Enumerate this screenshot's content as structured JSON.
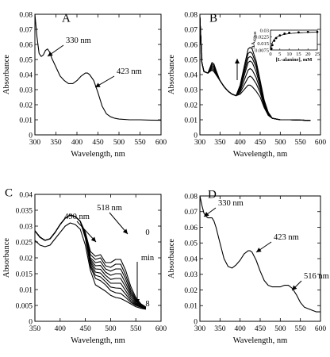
{
  "chart_data": [
    {
      "panel": "A",
      "type": "line",
      "xlabel": "Wavelength, nm",
      "ylabel": "Absorbance",
      "xlim": [
        300,
        600
      ],
      "ylim": [
        0,
        0.08
      ],
      "xticks": [
        "300",
        "350",
        "400",
        "450",
        "500",
        "550",
        "600"
      ],
      "yticks": [
        "0",
        "0.01",
        "0.02",
        "0.03",
        "0.04",
        "0.05",
        "0.06",
        "0.07",
        "0.08"
      ],
      "grid": false,
      "series": [
        {
          "x": [
            300,
            305,
            310,
            315,
            320,
            325,
            330,
            335,
            340,
            350,
            360,
            370,
            380,
            390,
            400,
            410,
            420,
            425,
            430,
            440,
            450,
            460,
            470,
            480,
            490,
            500,
            525,
            550,
            575,
            600
          ],
          "y": [
            0.08,
            0.065,
            0.054,
            0.052,
            0.053,
            0.056,
            0.057,
            0.055,
            0.051,
            0.045,
            0.039,
            0.036,
            0.034,
            0.034,
            0.036,
            0.039,
            0.041,
            0.041,
            0.04,
            0.036,
            0.028,
            0.019,
            0.014,
            0.012,
            0.011,
            0.0105,
            0.01,
            0.01,
            0.0098,
            0.0097
          ]
        }
      ],
      "annotations": [
        {
          "text": "330 nm",
          "x": 330,
          "y": 0.057
        },
        {
          "text": "423 nm",
          "x": 423,
          "y": 0.041
        }
      ]
    },
    {
      "panel": "B",
      "type": "line",
      "xlabel": "Wavelength, nm",
      "ylabel": "Absorbance",
      "xlim": [
        300,
        600
      ],
      "ylim": [
        0,
        0.08
      ],
      "xticks": [
        "300",
        "350",
        "400",
        "450",
        "500",
        "550",
        "600"
      ],
      "yticks": [
        "0",
        "0.01",
        "0.02",
        "0.03",
        "0.04",
        "0.05",
        "0.06",
        "0.07",
        "0.08"
      ],
      "grid": false,
      "x": [
        300,
        305,
        310,
        320,
        330,
        335,
        340,
        350,
        360,
        370,
        380,
        390,
        400,
        410,
        420,
        425,
        430,
        440,
        450,
        460,
        470,
        480,
        490,
        500,
        525,
        550,
        575
      ],
      "series": [
        {
          "values": [
            0.078,
            0.048,
            0.042,
            0.041,
            0.043,
            0.042,
            0.04,
            0.036,
            0.032,
            0.029,
            0.027,
            0.026,
            0.027,
            0.03,
            0.033,
            0.033,
            0.032,
            0.029,
            0.025,
            0.018,
            0.013,
            0.011,
            0.0105,
            0.01,
            0.01,
            0.0098,
            0.0096
          ]
        },
        {
          "values": [
            0.078,
            0.048,
            0.042,
            0.041,
            0.043,
            0.042,
            0.04,
            0.036,
            0.032,
            0.029,
            0.027,
            0.026,
            0.028,
            0.033,
            0.038,
            0.039,
            0.038,
            0.034,
            0.028,
            0.019,
            0.013,
            0.011,
            0.0105,
            0.01,
            0.01,
            0.0098,
            0.0096
          ]
        },
        {
          "values": [
            0.078,
            0.048,
            0.042,
            0.041,
            0.044,
            0.043,
            0.041,
            0.036,
            0.032,
            0.029,
            0.027,
            0.026,
            0.029,
            0.036,
            0.043,
            0.044,
            0.043,
            0.038,
            0.03,
            0.02,
            0.014,
            0.011,
            0.0105,
            0.01,
            0.01,
            0.0098,
            0.0096
          ]
        },
        {
          "values": [
            0.078,
            0.048,
            0.042,
            0.041,
            0.045,
            0.044,
            0.041,
            0.036,
            0.032,
            0.029,
            0.027,
            0.026,
            0.03,
            0.039,
            0.048,
            0.049,
            0.048,
            0.042,
            0.032,
            0.021,
            0.014,
            0.011,
            0.0105,
            0.01,
            0.01,
            0.0098,
            0.0096
          ]
        },
        {
          "values": [
            0.078,
            0.048,
            0.042,
            0.041,
            0.046,
            0.045,
            0.042,
            0.036,
            0.032,
            0.029,
            0.027,
            0.026,
            0.031,
            0.041,
            0.051,
            0.052,
            0.051,
            0.045,
            0.034,
            0.022,
            0.014,
            0.011,
            0.0105,
            0.01,
            0.01,
            0.0098,
            0.0096
          ]
        },
        {
          "values": [
            0.078,
            0.048,
            0.042,
            0.041,
            0.047,
            0.046,
            0.042,
            0.036,
            0.032,
            0.029,
            0.027,
            0.026,
            0.032,
            0.043,
            0.054,
            0.055,
            0.054,
            0.047,
            0.035,
            0.022,
            0.015,
            0.011,
            0.0105,
            0.01,
            0.01,
            0.0098,
            0.0096
          ]
        },
        {
          "values": [
            0.078,
            0.048,
            0.042,
            0.041,
            0.048,
            0.047,
            0.043,
            0.036,
            0.032,
            0.029,
            0.027,
            0.026,
            0.033,
            0.045,
            0.057,
            0.058,
            0.057,
            0.049,
            0.036,
            0.023,
            0.015,
            0.011,
            0.0105,
            0.01,
            0.01,
            0.0098,
            0.0096
          ]
        }
      ],
      "inset": {
        "type": "scatter",
        "xlabel": "[L-alanine], mM",
        "ylabel": "ΔA423nm",
        "ylabel_main": "ΔA",
        "ylabel_sub": "423nm",
        "xlim": [
          0,
          25
        ],
        "ylim": [
          0.0075,
          0.03
        ],
        "xticks": [
          "0",
          "5",
          "10",
          "15",
          "20",
          "25"
        ],
        "yticks": [
          "0.0075",
          "0.015",
          "0.0225",
          "0.03"
        ],
        "x": [
          0.5,
          1,
          2,
          3,
          5,
          7.5,
          10,
          15,
          20,
          25
        ],
        "y": [
          0.009,
          0.013,
          0.018,
          0.021,
          0.024,
          0.026,
          0.027,
          0.0275,
          0.028,
          0.028
        ]
      }
    },
    {
      "panel": "C",
      "type": "line",
      "xlabel": "Wavelength, nm",
      "ylabel": "Absorbance",
      "xlim": [
        350,
        600
      ],
      "ylim": [
        0,
        0.04
      ],
      "xticks": [
        "350",
        "400",
        "450",
        "500",
        "550",
        "600"
      ],
      "yticks": [
        "0",
        "0.005",
        "0.01",
        "0.015",
        "0.02",
        "0.025",
        "0.03",
        "0.035",
        "0.04"
      ],
      "grid": false,
      "x": [
        350,
        360,
        370,
        380,
        390,
        400,
        410,
        420,
        430,
        440,
        450,
        460,
        470,
        480,
        490,
        500,
        510,
        520,
        530,
        540,
        550,
        560,
        570
      ],
      "series": [
        {
          "values": [
            0.0285,
            0.0265,
            0.0255,
            0.026,
            0.028,
            0.0305,
            0.0325,
            0.0335,
            0.033,
            0.0315,
            0.028,
            0.022,
            0.0205,
            0.021,
            0.0185,
            0.0185,
            0.0195,
            0.0195,
            0.016,
            0.011,
            0.0075,
            0.0055,
            0.0045
          ]
        },
        {
          "values": [
            0.0285,
            0.0265,
            0.0255,
            0.026,
            0.028,
            0.0305,
            0.0325,
            0.0335,
            0.033,
            0.0315,
            0.0278,
            0.021,
            0.0195,
            0.02,
            0.0175,
            0.017,
            0.018,
            0.018,
            0.0145,
            0.01,
            0.007,
            0.0052,
            0.0044
          ]
        },
        {
          "values": [
            0.0285,
            0.0265,
            0.0255,
            0.026,
            0.028,
            0.0305,
            0.0325,
            0.0335,
            0.033,
            0.0315,
            0.0275,
            0.02,
            0.0185,
            0.0188,
            0.0165,
            0.0158,
            0.0165,
            0.0165,
            0.0133,
            0.0092,
            0.0066,
            0.005,
            0.0043
          ]
        },
        {
          "values": [
            0.0285,
            0.0265,
            0.0255,
            0.026,
            0.028,
            0.0305,
            0.0325,
            0.0335,
            0.033,
            0.0315,
            0.0272,
            0.0195,
            0.0175,
            0.0176,
            0.0155,
            0.0145,
            0.015,
            0.015,
            0.012,
            0.0085,
            0.0062,
            0.0049,
            0.0042
          ]
        },
        {
          "values": [
            0.0285,
            0.0265,
            0.0255,
            0.026,
            0.028,
            0.0305,
            0.0325,
            0.0335,
            0.033,
            0.0315,
            0.027,
            0.019,
            0.0165,
            0.0164,
            0.0145,
            0.0132,
            0.0135,
            0.0135,
            0.0108,
            0.0078,
            0.0058,
            0.0047,
            0.0041
          ]
        },
        {
          "values": [
            0.0285,
            0.0265,
            0.0255,
            0.026,
            0.028,
            0.0305,
            0.0325,
            0.0335,
            0.033,
            0.0315,
            0.0268,
            0.0185,
            0.0155,
            0.0152,
            0.0135,
            0.012,
            0.012,
            0.012,
            0.0096,
            0.0071,
            0.0055,
            0.0046,
            0.004
          ]
        },
        {
          "values": [
            0.0285,
            0.0265,
            0.0255,
            0.026,
            0.028,
            0.0305,
            0.0325,
            0.0335,
            0.033,
            0.0315,
            0.0265,
            0.0178,
            0.0145,
            0.014,
            0.0125,
            0.0108,
            0.0105,
            0.0104,
            0.0085,
            0.0065,
            0.0052,
            0.0045,
            0.004
          ]
        },
        {
          "values": [
            0.0285,
            0.0265,
            0.0255,
            0.026,
            0.028,
            0.0305,
            0.0325,
            0.0335,
            0.033,
            0.0315,
            0.0262,
            0.0172,
            0.0135,
            0.0128,
            0.0115,
            0.0097,
            0.009,
            0.0088,
            0.0075,
            0.006,
            0.005,
            0.0044,
            0.0039
          ]
        },
        {
          "values": [
            0.0255,
            0.024,
            0.0235,
            0.024,
            0.026,
            0.028,
            0.03,
            0.031,
            0.0305,
            0.029,
            0.024,
            0.016,
            0.0115,
            0.0105,
            0.0095,
            0.0082,
            0.0075,
            0.0072,
            0.0064,
            0.0055,
            0.0046,
            0.0041,
            0.0038
          ]
        }
      ],
      "annotations": [
        {
          "text": "490 nm",
          "x": 490,
          "y": 0.019
        },
        {
          "text": "518 nm",
          "x": 518,
          "y": 0.0195
        },
        {
          "text": "0"
        },
        {
          "text": "min"
        },
        {
          "text": "8"
        }
      ]
    },
    {
      "panel": "D",
      "type": "line",
      "xlabel": "Wavelength, nm",
      "ylabel": "Absorbance",
      "xlim": [
        300,
        600
      ],
      "ylim": [
        0,
        0.08
      ],
      "xticks": [
        "300",
        "350",
        "400",
        "450",
        "500",
        "550",
        "600"
      ],
      "yticks": [
        "0",
        "0.01",
        "0.02",
        "0.03",
        "0.04",
        "0.05",
        "0.06",
        "0.07",
        "0.08"
      ],
      "grid": false,
      "series": [
        {
          "x": [
            300,
            305,
            310,
            315,
            320,
            325,
            330,
            335,
            340,
            350,
            360,
            370,
            380,
            390,
            400,
            410,
            420,
            425,
            430,
            440,
            450,
            460,
            470,
            480,
            490,
            500,
            510,
            516,
            520,
            530,
            540,
            550,
            560,
            570,
            580,
            590,
            600
          ],
          "y": [
            0.08,
            0.074,
            0.069,
            0.067,
            0.066,
            0.066,
            0.066,
            0.064,
            0.06,
            0.05,
            0.04,
            0.035,
            0.034,
            0.036,
            0.039,
            0.043,
            0.045,
            0.045,
            0.044,
            0.039,
            0.032,
            0.026,
            0.023,
            0.022,
            0.022,
            0.022,
            0.023,
            0.023,
            0.023,
            0.021,
            0.017,
            0.012,
            0.009,
            0.008,
            0.007,
            0.006,
            0.006
          ]
        }
      ],
      "annotations": [
        {
          "text": "330 nm",
          "x": 330,
          "y": 0.066
        },
        {
          "text": "423 nm",
          "x": 423,
          "y": 0.045
        },
        {
          "text": "516 nm",
          "x": 516,
          "y": 0.023
        }
      ]
    }
  ]
}
